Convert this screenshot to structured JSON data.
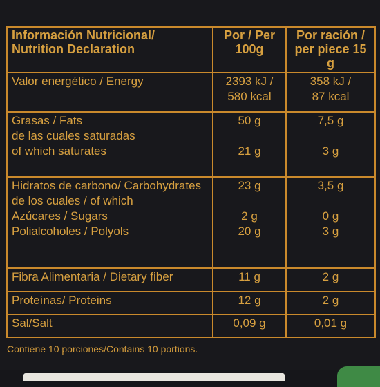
{
  "table": {
    "header": {
      "col1_line1": "Información Nutricional/",
      "col1_line2": "Nutrition Declaration",
      "col2_line1": "Por / Per",
      "col2_line2": "100g",
      "col3_line1": "Por ración /",
      "col3_line2": "per piece 15 g"
    },
    "rows": [
      {
        "label_lines": [
          "Valor energético / Energy"
        ],
        "per100_lines": [
          "2393 kJ /",
          "580 kcal"
        ],
        "perpiece_lines": [
          "358 kJ /",
          "87 kcal"
        ]
      },
      {
        "label_lines": [
          "Grasas / Fats",
          "de las cuales saturadas",
          "of which saturates"
        ],
        "per100_lines": [
          "50 g",
          "21 g"
        ],
        "perpiece_lines": [
          "7,5 g",
          "3 g"
        ]
      },
      {
        "label_lines": [
          "Hidratos de carbono/ Carbohydrates",
          "de los cuales / of which",
          "Azúcares / Sugars",
          "Polialcoholes / Polyols"
        ],
        "per100_lines": [
          "23 g",
          "2 g",
          "20 g"
        ],
        "perpiece_lines": [
          "3,5 g",
          "0 g",
          "3 g"
        ]
      },
      {
        "label_lines": [
          "Fibra Alimentaria / Dietary fiber"
        ],
        "per100_lines": [
          "11 g"
        ],
        "perpiece_lines": [
          "2 g"
        ]
      },
      {
        "label_lines": [
          "Proteínas/ Proteins"
        ],
        "per100_lines": [
          "12 g"
        ],
        "perpiece_lines": [
          "2 g"
        ]
      },
      {
        "label_lines": [
          "Sal/Salt"
        ],
        "per100_lines": [
          "0,09 g"
        ],
        "perpiece_lines": [
          "0,01 g"
        ]
      }
    ]
  },
  "footnote": "Contiene 10 porciones/Contains 10 portions.",
  "colors": {
    "background": "#18181c",
    "text": "#d7a040",
    "border": "#c9892c"
  }
}
